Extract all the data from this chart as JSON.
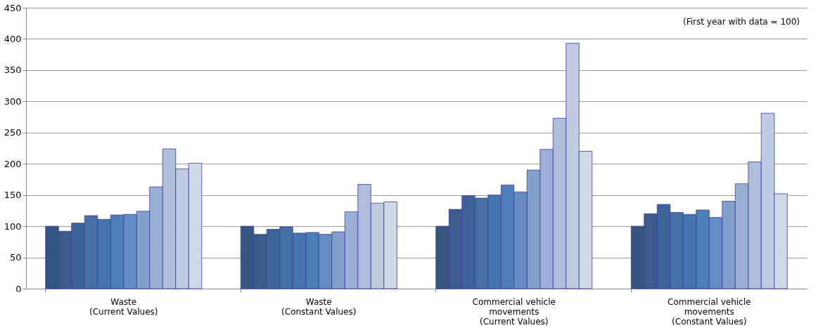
{
  "chart_data": {
    "type": "bar",
    "categories": [
      "Waste\n(Current Values)",
      "Waste\n(Constant Values)",
      "Commercial vehicle\nmovements\n(Current Values)",
      "Commercial vehicle\nmovements\n(Constant Values)"
    ],
    "series": [
      {
        "color": "#33557f",
        "values": [
          100,
          100,
          100,
          100
        ]
      },
      {
        "color": "#3a5b8b",
        "values": [
          92,
          87,
          127,
          120
        ]
      },
      {
        "color": "#3d6498",
        "values": [
          105,
          95,
          149,
          135
        ]
      },
      {
        "color": "#4670a4",
        "values": [
          117,
          99,
          145,
          122
        ]
      },
      {
        "color": "#4574b0",
        "values": [
          111,
          89,
          150,
          119
        ]
      },
      {
        "color": "#4c7eb8",
        "values": [
          118,
          90,
          166,
          126
        ]
      },
      {
        "color": "#668dc3",
        "values": [
          119,
          87,
          155,
          114
        ]
      },
      {
        "color": "#839fcc",
        "values": [
          124,
          91,
          190,
          140
        ]
      },
      {
        "color": "#9cb0d5",
        "values": [
          163,
          123,
          223,
          168
        ]
      },
      {
        "color": "#adbdda",
        "values": [
          224,
          167,
          273,
          203
        ]
      },
      {
        "color": "#c0cbe2",
        "values": [
          192,
          137,
          393,
          281
        ]
      },
      {
        "color": "#d0d8e8",
        "values": [
          201,
          139,
          220,
          152
        ]
      }
    ],
    "ylim": [
      0,
      450
    ],
    "yticks": [
      0,
      50,
      100,
      150,
      200,
      250,
      300,
      350,
      400,
      450
    ],
    "grid": "y",
    "annotations": [
      "(First year with data = 100)"
    ]
  }
}
